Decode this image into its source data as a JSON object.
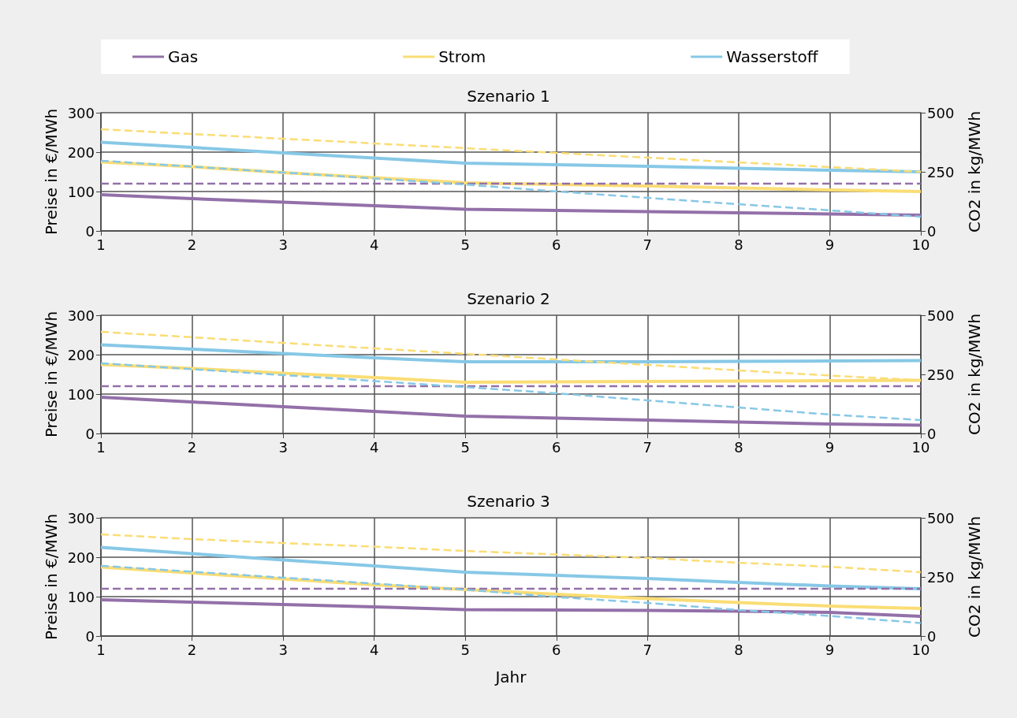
{
  "chart_data": [
    {
      "type": "line",
      "title": "Szenario 1",
      "ylabel": "Preise in €/MWh",
      "y2label": "CO2 in kg/MWh",
      "x": [
        1,
        2,
        3,
        4,
        5,
        6,
        7,
        8,
        9,
        10
      ],
      "xlim": [
        1,
        10
      ],
      "xticks": [
        1,
        2,
        3,
        4,
        5,
        6,
        7,
        8,
        9,
        10
      ],
      "ylim": [
        0,
        300
      ],
      "yticks": [
        0,
        100,
        200,
        300
      ],
      "y2lim": [
        0,
        500
      ],
      "y2ticks": [
        0,
        250,
        500
      ],
      "grid": true,
      "legend": "top",
      "marker": "none",
      "series": [
        {
          "name": "Gas",
          "color": "#9370a9",
          "values": [
            92,
            82,
            73,
            64,
            55,
            52,
            49,
            46,
            43,
            40
          ]
        },
        {
          "name": "Strom",
          "color": "#fadd75",
          "values": [
            175,
            163,
            148,
            135,
            122,
            118,
            114,
            109,
            104,
            100
          ]
        },
        {
          "name": "Wasserstoff",
          "color": "#87c8e6",
          "values": [
            225,
            212,
            198,
            185,
            172,
            168,
            164,
            159,
            154,
            150
          ]
        },
        {
          "color": "#9370a9",
          "axis": "y2",
          "line_style": "dashed",
          "values": [
            200,
            200,
            200,
            200,
            200,
            200,
            200,
            200,
            200,
            200
          ]
        },
        {
          "color": "#fadd75",
          "axis": "y2",
          "line_style": "dashed",
          "values": [
            430,
            410,
            390,
            370,
            350,
            330,
            310,
            290,
            270,
            250
          ]
        },
        {
          "color": "#87c8e6",
          "axis": "y2",
          "line_style": "dashed",
          "values": [
            297,
            272,
            247,
            222,
            196,
            167,
            140,
            113,
            87,
            60
          ]
        }
      ]
    },
    {
      "type": "line",
      "title": "Szenario 2",
      "ylabel": "Preise in €/MWh",
      "y2label": "CO2 in kg/MWh",
      "x": [
        1,
        2,
        3,
        4,
        5,
        6,
        7,
        8,
        9,
        10
      ],
      "xlim": [
        1,
        10
      ],
      "xticks": [
        1,
        2,
        3,
        4,
        5,
        6,
        7,
        8,
        9,
        10
      ],
      "ylim": [
        0,
        300
      ],
      "yticks": [
        0,
        100,
        200,
        300
      ],
      "y2lim": [
        0,
        500
      ],
      "y2ticks": [
        0,
        250,
        500
      ],
      "grid": true,
      "marker": "none",
      "series": [
        {
          "color": "#9370a9",
          "values": [
            92,
            80,
            68,
            56,
            44,
            39,
            34,
            29,
            24,
            21
          ]
        },
        {
          "color": "#fadd75",
          "values": [
            175,
            165,
            153,
            142,
            130,
            131,
            132,
            133,
            134,
            135
          ]
        },
        {
          "color": "#87c8e6",
          "values": [
            225,
            214,
            203,
            192,
            182,
            182,
            182,
            183,
            184,
            185
          ]
        },
        {
          "color": "#9370a9",
          "axis": "y2",
          "line_style": "dashed",
          "values": [
            200,
            200,
            200,
            200,
            200,
            200,
            200,
            200,
            200,
            200
          ]
        },
        {
          "color": "#fadd75",
          "axis": "y2",
          "line_style": "dashed",
          "values": [
            430,
            407,
            383,
            360,
            337,
            313,
            290,
            267,
            245,
            225
          ]
        },
        {
          "color": "#87c8e6",
          "axis": "y2",
          "line_style": "dashed",
          "values": [
            297,
            272,
            247,
            222,
            196,
            170,
            140,
            110,
            80,
            57
          ]
        }
      ]
    },
    {
      "type": "line",
      "title": "Szenario 3",
      "xlabel": "Jahr",
      "ylabel": "Preise in €/MWh",
      "y2label": "CO2 in kg/MWh",
      "x": [
        1,
        2,
        3,
        4,
        5,
        6,
        7,
        8,
        9,
        10
      ],
      "xlim": [
        1,
        10
      ],
      "xticks": [
        1,
        2,
        3,
        4,
        5,
        6,
        7,
        8,
        9,
        10
      ],
      "ylim": [
        0,
        300
      ],
      "yticks": [
        0,
        100,
        200,
        300
      ],
      "y2lim": [
        0,
        500
      ],
      "y2ticks": [
        0,
        250,
        500
      ],
      "grid": true,
      "marker": "none",
      "series": [
        {
          "color": "#9370a9",
          "values": [
            92,
            86,
            80,
            74,
            67,
            66,
            65,
            63,
            60,
            50
          ]
        },
        {
          "color": "#fadd75",
          "values": [
            175,
            160,
            145,
            130,
            118,
            106,
            95,
            85,
            76,
            70
          ]
        },
        {
          "color": "#87c8e6",
          "values": [
            225,
            209,
            193,
            178,
            162,
            154,
            146,
            136,
            127,
            120
          ]
        },
        {
          "color": "#9370a9",
          "axis": "y2",
          "line_style": "dashed",
          "values": [
            200,
            200,
            200,
            200,
            200,
            200,
            200,
            200,
            200,
            200
          ]
        },
        {
          "color": "#fadd75",
          "axis": "y2",
          "line_style": "dashed",
          "values": [
            430,
            410,
            393,
            378,
            360,
            345,
            330,
            310,
            293,
            270
          ]
        },
        {
          "color": "#87c8e6",
          "axis": "y2",
          "line_style": "dashed",
          "values": [
            297,
            272,
            247,
            222,
            196,
            165,
            140,
            110,
            85,
            55
          ]
        }
      ]
    }
  ]
}
